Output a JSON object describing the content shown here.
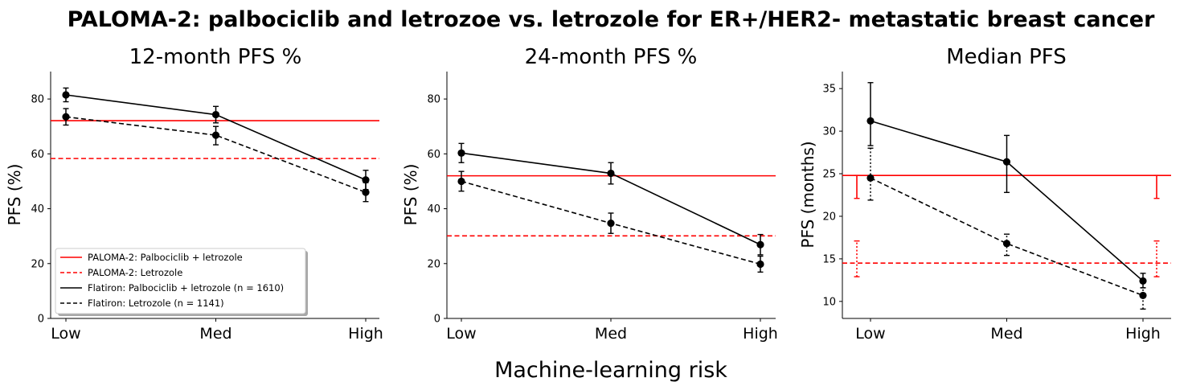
{
  "title": "PALOMA-2: palbociclib and letrozoe vs. letrozole for ER+/HER2- metastatic breast cancer",
  "xlabel": "Machine-learning risk",
  "colors": {
    "paloma": "#ff0000",
    "flatiron": "#000000"
  },
  "legend": {
    "placement": "lower-left of first panel",
    "entries": [
      {
        "label": "PALOMA-2: Palbociclib + letrozole",
        "color": "#ff0000",
        "style": "solid"
      },
      {
        "label": "PALOMA-2: Letrozole",
        "color": "#ff0000",
        "style": "dashed"
      },
      {
        "label": "Flatiron: Palbociclib + letrozole (n = 1610)",
        "color": "#000000",
        "style": "solid"
      },
      {
        "label": "Flatiron: Letrozole (n = 1141)",
        "color": "#000000",
        "style": "dashed"
      }
    ]
  },
  "chart_data": [
    {
      "type": "line",
      "title": "12-month PFS %",
      "ylabel": "PFS (%)",
      "categories": [
        "Low",
        "Med",
        "High"
      ],
      "ylim": [
        0,
        90
      ],
      "yticks": [
        "0",
        "20",
        "40",
        "60",
        "80"
      ],
      "series": [
        {
          "name": "Flatiron: Palbociclib + letrozole (n = 1610)",
          "style": "solid",
          "values": [
            81.5,
            74.3,
            50.5
          ],
          "err_low": [
            79.0,
            71.3,
            47.0
          ],
          "err_high": [
            84.0,
            77.3,
            54.0
          ]
        },
        {
          "name": "Flatiron: Letrozole (n = 1141)",
          "style": "dashed",
          "values": [
            73.5,
            66.8,
            46.0
          ],
          "err_low": [
            70.5,
            63.3,
            42.6
          ],
          "err_high": [
            76.5,
            70.0,
            49.5
          ]
        }
      ],
      "reference_lines": [
        {
          "name": "PALOMA-2: Palbociclib + letrozole",
          "style": "solid",
          "value": 72.1
        },
        {
          "name": "PALOMA-2: Letrozole",
          "style": "dashed",
          "value": 58.3
        }
      ]
    },
    {
      "type": "line",
      "title": "24-month PFS %",
      "ylabel": "PFS (%)",
      "categories": [
        "Low",
        "Med",
        "High"
      ],
      "ylim": [
        0,
        90
      ],
      "yticks": [
        "0",
        "20",
        "40",
        "60",
        "80"
      ],
      "series": [
        {
          "name": "Flatiron: Palbociclib + letrozole (n = 1610)",
          "style": "solid",
          "values": [
            60.3,
            52.9,
            26.9
          ],
          "err_low": [
            56.8,
            49.0,
            23.2
          ],
          "err_high": [
            63.8,
            56.8,
            30.6
          ]
        },
        {
          "name": "Flatiron: Letrozole (n = 1141)",
          "style": "dashed",
          "values": [
            50.0,
            34.7,
            19.8
          ],
          "err_low": [
            46.4,
            31.0,
            16.9
          ],
          "err_high": [
            53.6,
            38.4,
            22.7
          ]
        }
      ],
      "reference_lines": [
        {
          "name": "PALOMA-2: Palbociclib + letrozole",
          "style": "solid",
          "value": 52.0
        },
        {
          "name": "PALOMA-2: Letrozole",
          "style": "dashed",
          "value": 30.1
        }
      ]
    },
    {
      "type": "line",
      "title": "Median PFS",
      "ylabel": "PFS (months)",
      "categories": [
        "Low",
        "Med",
        "High"
      ],
      "ylim": [
        8,
        37
      ],
      "yticks": [
        "10",
        "15",
        "20",
        "25",
        "30",
        "35"
      ],
      "series": [
        {
          "name": "Flatiron: Palbociclib + letrozole (n = 1610)",
          "style": "solid",
          "values": [
            31.2,
            26.4,
            12.4
          ],
          "err_low": [
            28.3,
            22.8,
            11.6
          ],
          "err_high": [
            35.7,
            29.5,
            13.3
          ]
        },
        {
          "name": "Flatiron: Letrozole (n = 1141)",
          "style": "dashed",
          "err_style": "dotted",
          "values": [
            24.5,
            16.8,
            10.7
          ],
          "err_low": [
            21.9,
            15.4,
            9.1
          ],
          "err_high": [
            28.0,
            17.9,
            11.6
          ]
        }
      ],
      "reference_lines": [
        {
          "name": "PALOMA-2: Palbociclib + letrozole",
          "style": "solid",
          "value": 24.8,
          "ci": [
            22.1,
            24.8
          ]
        },
        {
          "name": "PALOMA-2: Letrozole",
          "style": "dashed",
          "value": 14.5,
          "ci": [
            12.9,
            17.1
          ]
        }
      ]
    }
  ]
}
